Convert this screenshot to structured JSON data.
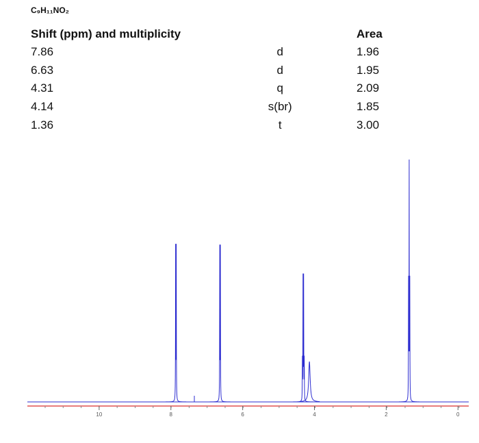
{
  "formula": "C₉H₁₁NO₂",
  "table": {
    "header": [
      "Shift (ppm) and multiplicity",
      "Area"
    ],
    "rows": [
      [
        "7.86",
        "d",
        "1.96"
      ],
      [
        "6.63",
        "d",
        "1.95"
      ],
      [
        "4.31",
        "q",
        "2.09"
      ],
      [
        "4.14",
        "s(br)",
        "1.85"
      ],
      [
        "1.36",
        "t",
        "3.00"
      ]
    ]
  },
  "spectrum": {
    "xlim": [
      12,
      -0.3
    ],
    "xticks": [
      10,
      8,
      6,
      4,
      2,
      0
    ],
    "color": "#2b2bd0",
    "axis_color": "#e05050"
  }
}
